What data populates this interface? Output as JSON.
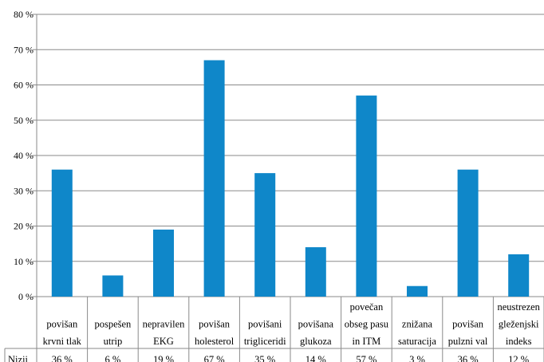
{
  "chart_data": {
    "type": "bar",
    "categories": [
      [
        "povišan",
        "krvni tlak"
      ],
      [
        "pospešen",
        "utrip"
      ],
      [
        "nepravilen",
        "EKG"
      ],
      [
        "povišan",
        "holesterol"
      ],
      [
        "povišani",
        "trigliceridi"
      ],
      [
        "povišana",
        "glukoza"
      ],
      [
        "povečan",
        "obseg pasu",
        "in ITM"
      ],
      [
        "znižana",
        "saturacija"
      ],
      [
        "povišan",
        "pulzni val"
      ],
      [
        "neustrezen",
        "gleženjski",
        "indeks"
      ]
    ],
    "series": [
      {
        "name": "Nizji",
        "values": [
          36,
          6,
          19,
          67,
          35,
          14,
          57,
          3,
          36,
          12
        ],
        "value_labels": [
          "36 %",
          "6 %",
          "19 %",
          "67 %",
          "35 %",
          "14 %",
          "57 %",
          "3 %",
          "36 %",
          "12 %"
        ]
      }
    ],
    "ylim": [
      0,
      80
    ],
    "y_ticks": [
      0,
      10,
      20,
      30,
      40,
      50,
      60,
      70,
      80
    ],
    "y_tick_labels": [
      "0 %",
      "10 %",
      "20 %",
      "30 %",
      "40 %",
      "50 %",
      "60 %",
      "70 %",
      "80 %"
    ],
    "grid": "horizontal",
    "legend": "data-table-row",
    "bar_color": "#0f87c9",
    "grid_color": "#8a8a8a",
    "title": "",
    "xlabel": "",
    "ylabel": ""
  }
}
